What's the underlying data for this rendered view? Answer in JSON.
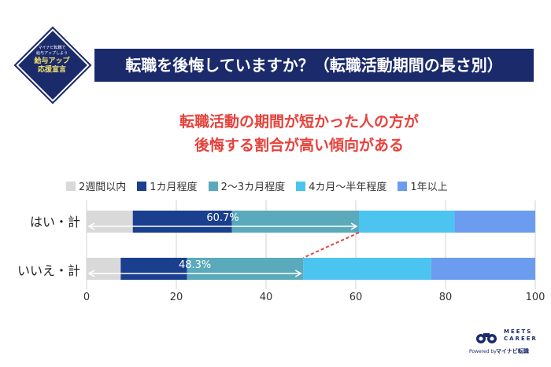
{
  "badge": {
    "line1": "マイナビ転職で",
    "line2": "給与アップしよう",
    "line3": "給与アップ",
    "line4": "応援宣言"
  },
  "title": "転職を後悔していますか？（転職活動期間の長さ別）",
  "headline": {
    "line1": "転職活動の期間が短かった人の方が",
    "line2": "後悔する割合が高い傾向がある"
  },
  "footer": {
    "logo_name_1": "MEETS",
    "logo_name_2": "CAREER",
    "powered_by": "Powered by",
    "brand": "マイナビ転職"
  },
  "chart_data": {
    "type": "bar",
    "orientation": "horizontal",
    "stacked": true,
    "categories": [
      "はい・計",
      "いいえ・計"
    ],
    "series": [
      {
        "name": "2週間以内",
        "color": "#d9d9d9",
        "values": [
          10.3,
          7.6
        ]
      },
      {
        "name": "1カ月程度",
        "color": "#1b3f8f",
        "values": [
          22.1,
          14.8
        ]
      },
      {
        "name": "2〜3カ月程度",
        "color": "#5aaabb",
        "values": [
          28.3,
          25.9
        ]
      },
      {
        "name": "4カ月〜半年程度",
        "color": "#4bc4f0",
        "values": [
          21.3,
          28.5
        ]
      },
      {
        "name": "1年以上",
        "color": "#6b9cf0",
        "values": [
          18.0,
          23.2
        ]
      }
    ],
    "cumulative_labels": [
      {
        "category": "はい・計",
        "value": 60.7,
        "text": "60.7%"
      },
      {
        "category": "いいえ・計",
        "value": 48.3,
        "text": "48.3%"
      }
    ],
    "xlim": [
      0,
      100
    ],
    "xticks": [
      0,
      20,
      40,
      60,
      80,
      100
    ],
    "grid": true,
    "legend": "top",
    "connector_color": "#e8413b"
  }
}
